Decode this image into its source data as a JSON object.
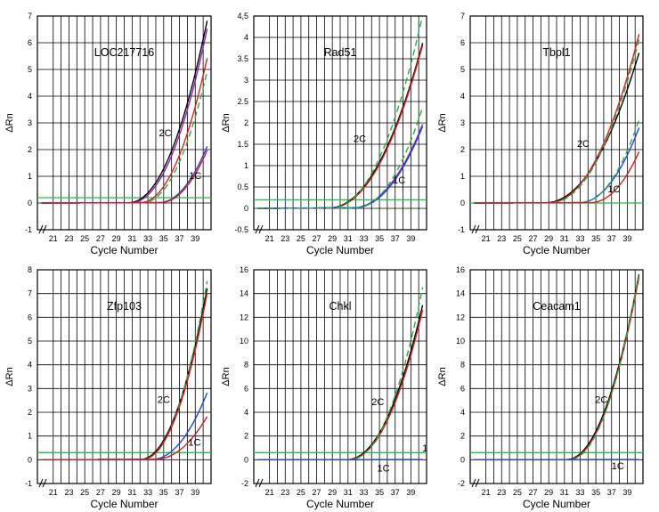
{
  "chart_data": [
    {
      "type": "line",
      "title": "LOC217716",
      "xlabel": "Cycle Number",
      "ylabel": "ΔRn",
      "xlim": [
        19,
        41
      ],
      "ylim": [
        -1,
        7
      ],
      "xticks": [
        "21",
        "23",
        "25",
        "27",
        "29",
        "31",
        "33",
        "35",
        "37",
        "39"
      ],
      "yticks": [
        "-1",
        "0",
        "1",
        "2",
        "3",
        "4",
        "5",
        "6",
        "7"
      ],
      "threshold": 0.2,
      "annotations": [
        {
          "text": "2C",
          "x": 35.2,
          "y": 2.5
        },
        {
          "text": "1C",
          "x": 39.0,
          "y": 0.9
        }
      ],
      "series": [
        {
          "name": "2C replicate 1",
          "color": "#000000",
          "dash": false,
          "start": 30.5,
          "rise_end": 6.8
        },
        {
          "name": "2C replicate 2",
          "color": "#8822aa",
          "dash": false,
          "start": 30.8,
          "rise_end": 6.5
        },
        {
          "name": "2C replicate 3",
          "color": "#e02020",
          "dash": false,
          "start": 32.0,
          "rise_end": 5.4
        },
        {
          "name": "2C replicate 4",
          "color": "#20b040",
          "dash": true,
          "start": 32.3,
          "rise_end": 4.9
        },
        {
          "name": "1C replicate 1",
          "color": "#2244dd",
          "dash": false,
          "start": 34.3,
          "rise_end": 2.1
        },
        {
          "name": "1C replicate 2",
          "color": "#cc2222",
          "dash": false,
          "start": 34.5,
          "rise_end": 1.95
        }
      ]
    },
    {
      "type": "line",
      "title": "Rad51",
      "xlabel": "Cycle Number",
      "ylabel": "ΔRn",
      "xlim": [
        19,
        41
      ],
      "ylim": [
        -0.5,
        4.5
      ],
      "xticks": [
        "21",
        "23",
        "25",
        "27",
        "29",
        "31",
        "33",
        "35",
        "37",
        "39"
      ],
      "yticks": [
        "-0.5",
        "0",
        "0.5",
        "1",
        "1.5",
        "2",
        "2.5",
        "3",
        "3.5",
        "4",
        "4,5"
      ],
      "threshold": 0.2,
      "annotations": [
        {
          "text": "2C",
          "x": 32.5,
          "y": 1.55
        },
        {
          "text": "1C",
          "x": 37.5,
          "y": 0.58
        }
      ],
      "series": [
        {
          "name": "2C replicate 1",
          "color": "#000000",
          "dash": false,
          "start": 28.5,
          "rise_end": 3.85
        },
        {
          "name": "2C replicate 2",
          "color": "#e02020",
          "dash": false,
          "start": 28.7,
          "rise_end": 3.8
        },
        {
          "name": "2C replicate 3",
          "color": "#20b040",
          "dash": true,
          "start": 28.9,
          "rise_end": 4.5
        },
        {
          "name": "1C replicate 1",
          "color": "#8822aa",
          "dash": false,
          "start": 31.5,
          "rise_end": 1.95
        },
        {
          "name": "1C replicate 2",
          "color": "#2244dd",
          "dash": false,
          "start": 31.7,
          "rise_end": 1.9
        },
        {
          "name": "1C replicate 3",
          "color": "#20b040",
          "dash": true,
          "start": 31.9,
          "rise_end": 2.35
        }
      ]
    },
    {
      "type": "line",
      "title": "Tbpl1",
      "xlabel": "Cycle Number",
      "ylabel": "ΔRn",
      "xlim": [
        19,
        41
      ],
      "ylim": [
        -1,
        7
      ],
      "xticks": [
        "21",
        "23",
        "25",
        "27",
        "29",
        "31",
        "33",
        "35",
        "37",
        "39"
      ],
      "yticks": [
        "-1",
        "0",
        "1",
        "2",
        "3",
        "4",
        "5",
        "6",
        "7"
      ],
      "threshold": 0.0,
      "annotations": [
        {
          "text": "2C",
          "x": 33.4,
          "y": 2.1
        },
        {
          "text": "1C",
          "x": 37.3,
          "y": 0.4
        }
      ],
      "series": [
        {
          "name": "2C replicate 1",
          "color": "#000000",
          "dash": false,
          "start": 28.5,
          "rise_end": 5.6
        },
        {
          "name": "2C replicate 2",
          "color": "#e02020",
          "dash": false,
          "start": 29.0,
          "rise_end": 6.3
        },
        {
          "name": "2C replicate 3",
          "color": "#20b040",
          "dash": true,
          "start": 29.2,
          "rise_end": 6.1
        },
        {
          "name": "1C replicate 1",
          "color": "#2244dd",
          "dash": false,
          "start": 32.8,
          "rise_end": 2.8
        },
        {
          "name": "1C replicate 2",
          "color": "#20b040",
          "dash": true,
          "start": 33.0,
          "rise_end": 3.1
        },
        {
          "name": "1C replicate 3",
          "color": "#cc2222",
          "dash": false,
          "start": 34.3,
          "rise_end": 1.9
        }
      ]
    },
    {
      "type": "line",
      "title": "Zfp103",
      "xlabel": "Cycle Number",
      "ylabel": "ΔRn",
      "xlim": [
        19,
        41
      ],
      "ylim": [
        -1,
        8
      ],
      "xticks": [
        "21",
        "23",
        "25",
        "27",
        "29",
        "31",
        "33",
        "35",
        "37",
        "39"
      ],
      "yticks": [
        "-1",
        "0",
        "1",
        "2",
        "3",
        "4",
        "5",
        "6",
        "7",
        "8"
      ],
      "threshold": 0.3,
      "annotations": [
        {
          "text": "2C",
          "x": 35.0,
          "y": 2.4
        },
        {
          "text": "1C",
          "x": 38.9,
          "y": 0.6
        }
      ],
      "series": [
        {
          "name": "2C replicate 1",
          "color": "#000000",
          "dash": false,
          "start": 32.0,
          "rise_end": 7.2
        },
        {
          "name": "2C replicate 2",
          "color": "#20b040",
          "dash": true,
          "start": 32.3,
          "rise_end": 7.5
        },
        {
          "name": "2C replicate 3",
          "color": "#e02020",
          "dash": false,
          "start": 32.2,
          "rise_end": 7.0
        },
        {
          "name": "1C replicate 1",
          "color": "#2244dd",
          "dash": false,
          "start": 33.4,
          "rise_end": 2.8
        },
        {
          "name": "1C replicate 2",
          "color": "#cc2222",
          "dash": false,
          "start": 33.8,
          "rise_end": 1.8
        }
      ]
    },
    {
      "type": "line",
      "title": "Chkl",
      "xlabel": "Cycle Number",
      "ylabel": "ΔRn",
      "xlim": [
        19,
        41
      ],
      "ylim": [
        -2,
        16
      ],
      "xticks": [
        "21",
        "23",
        "25",
        "27",
        "29",
        "31",
        "33",
        "35",
        "37",
        "39"
      ],
      "yticks": [
        "-2",
        "0",
        "2",
        "4",
        "6",
        "8",
        "10",
        "12",
        "14",
        "16"
      ],
      "threshold": 0.6,
      "annotations": [
        {
          "text": "2C",
          "x": 34.8,
          "y": 4.6
        },
        {
          "text": "1C",
          "x": 35.5,
          "y": -1.0
        },
        {
          "text": "1",
          "x": 40.8,
          "y": 0.7
        }
      ],
      "series": [
        {
          "name": "2C replicate 1",
          "color": "#000000",
          "dash": false,
          "start": 30.8,
          "rise_end": 13.0
        },
        {
          "name": "2C replicate 2",
          "color": "#e02020",
          "dash": false,
          "start": 31.0,
          "rise_end": 12.6
        },
        {
          "name": "2C replicate 3",
          "color": "#20b040",
          "dash": true,
          "start": 31.2,
          "rise_end": 14.5
        },
        {
          "name": "1C baseline",
          "color": "#2244dd",
          "dash": false,
          "start": 41.0,
          "rise_end": 0.1
        }
      ]
    },
    {
      "type": "line",
      "title": "Ceacam1",
      "xlabel": "Cycle Number",
      "ylabel": "ΔRn",
      "xlim": [
        19,
        41
      ],
      "ylim": [
        -2,
        16
      ],
      "xticks": [
        "21",
        "23",
        "25",
        "27",
        "29",
        "31",
        "33",
        "35",
        "37",
        "39"
      ],
      "yticks": [
        "-2",
        "0",
        "2",
        "4",
        "6",
        "8",
        "10",
        "12",
        "14",
        "16"
      ],
      "threshold": 0.6,
      "annotations": [
        {
          "text": "2C",
          "x": 35.7,
          "y": 4.8
        },
        {
          "text": "1C",
          "x": 37.8,
          "y": -0.8
        }
      ],
      "series": [
        {
          "name": "2C replicate 1",
          "color": "#000000",
          "dash": false,
          "start": 31.2,
          "rise_end": 15.6
        },
        {
          "name": "2C replicate 2",
          "color": "#e02020",
          "dash": false,
          "start": 31.4,
          "rise_end": 15.4
        },
        {
          "name": "2C replicate 3",
          "color": "#20b040",
          "dash": true,
          "start": 31.6,
          "rise_end": 15.8
        },
        {
          "name": "1C baseline",
          "color": "#2244dd",
          "dash": false,
          "start": 41.0,
          "rise_end": 0.1
        }
      ]
    }
  ]
}
